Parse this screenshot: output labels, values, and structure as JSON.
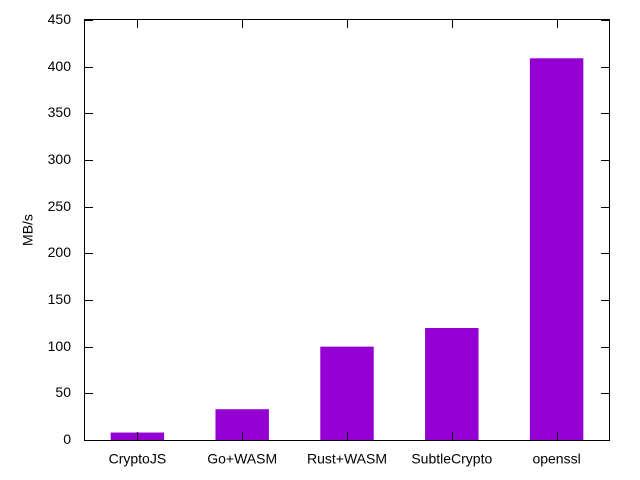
{
  "chart_data": {
    "type": "bar",
    "title": "",
    "xlabel": "",
    "ylabel": "MB/s",
    "categories": [
      "CryptoJS",
      "Go+WASM",
      "Rust+WASM",
      "SubtleCrypto",
      "openssl"
    ],
    "values": [
      8,
      33,
      100,
      120,
      409
    ],
    "ylim": [
      0,
      450
    ],
    "yticks": [
      0,
      50,
      100,
      150,
      200,
      250,
      300,
      350,
      400,
      450
    ],
    "grid": false,
    "legend": "none",
    "bar_color": "#9400d3"
  }
}
